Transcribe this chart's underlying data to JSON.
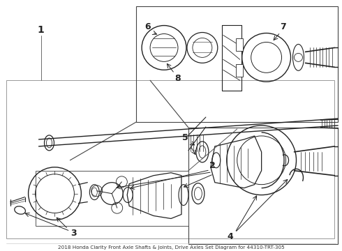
{
  "bg_color": "#ffffff",
  "line_color": "#222222",
  "fig_w": 4.9,
  "fig_h": 3.6,
  "dpi": 100,
  "title": "2018 Honda Clarity Front Axle Shafts & Joints, Drive Axles Set Diagram for 44310-TRT-305"
}
